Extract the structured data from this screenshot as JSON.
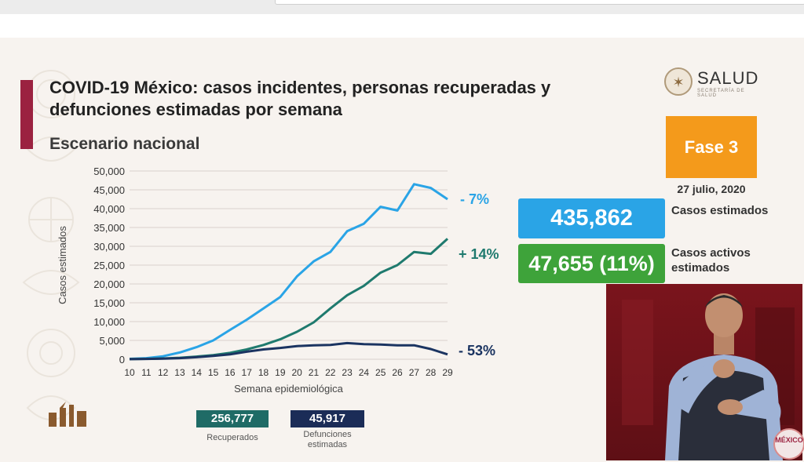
{
  "slide": {
    "title": "COVID-19 México: casos incidentes, personas recuperadas y defunciones estimadas por semana",
    "subtitle": "Escenario nacional",
    "logo_text": "SALUD",
    "logo_subtext": "SECRETARÍA DE SALUD",
    "phase": "Fase 3",
    "date": "27 julio, 2020",
    "estimated_cases": {
      "value": "435,862",
      "label": "Casos estimados",
      "color": "#2aa4e6"
    },
    "active_cases": {
      "value": "47,655 (11%)",
      "label": "Casos activos estimados",
      "color": "#3ea33a"
    },
    "recovered_total": {
      "value": "256,777",
      "label": "Recuperados",
      "color": "#1f6b66"
    },
    "deaths_total": {
      "value": "45,917",
      "label": "Defunciones estimadas",
      "color": "#1b2c57"
    },
    "badge_text": "MÉXICO",
    "accent_color": "#9b2240"
  },
  "chart_data": {
    "type": "line",
    "xlabel": "Semana epidemiológica",
    "ylabel": "Casos estimados",
    "x": [
      10,
      11,
      12,
      13,
      14,
      15,
      16,
      17,
      18,
      19,
      20,
      21,
      22,
      23,
      24,
      25,
      26,
      27,
      28,
      29
    ],
    "ylim": [
      0,
      50000
    ],
    "yticks": [
      0,
      5000,
      10000,
      15000,
      20000,
      25000,
      30000,
      35000,
      40000,
      45000,
      50000
    ],
    "ytick_labels": [
      "0",
      "5,000",
      "10,000",
      "15,000",
      "20,000",
      "25,000",
      "30,000",
      "35,000",
      "40,000",
      "45,000",
      "50,000"
    ],
    "grid": true,
    "series": [
      {
        "color": "#2aa4e6",
        "end_label": "- 7%",
        "values": [
          100,
          300,
          800,
          1800,
          3200,
          5000,
          7800,
          10500,
          13500,
          16500,
          22000,
          26000,
          28500,
          34000,
          36000,
          40500,
          39500,
          46500,
          45500,
          42500
        ]
      },
      {
        "color": "#1f7a6e",
        "end_label": "+ 14%",
        "values": [
          50,
          100,
          200,
          400,
          700,
          1100,
          1700,
          2600,
          3800,
          5300,
          7300,
          9800,
          13500,
          17000,
          19500,
          23000,
          25000,
          28500,
          28000,
          32000
        ]
      },
      {
        "color": "#1b3461",
        "end_label": "- 53%",
        "values": [
          30,
          80,
          150,
          300,
          550,
          900,
          1300,
          2000,
          2600,
          3000,
          3500,
          3700,
          3800,
          4300,
          4000,
          3900,
          3700,
          3700,
          2700,
          1300
        ]
      }
    ]
  }
}
